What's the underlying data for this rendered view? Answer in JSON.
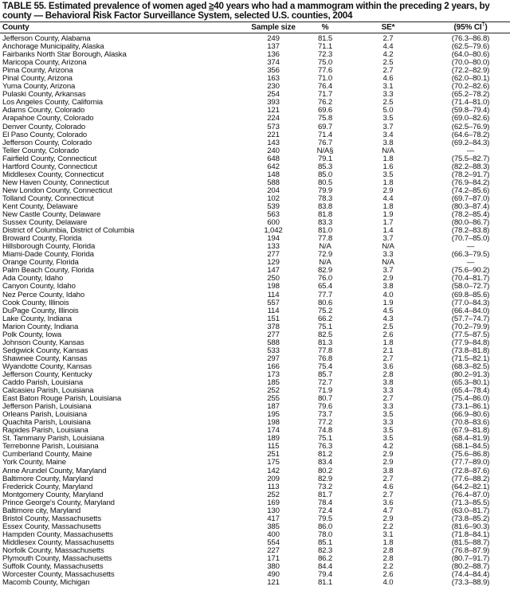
{
  "title": {
    "prefix": "TABLE 55. Estimated prevalence of women aged ",
    "ge": "≥",
    "suffix": "40 years who had a mammogram within the preceding 2 years, by county — Behavioral Risk Factor Surveillance System, selected U.S. counties, 2004"
  },
  "columns": {
    "county": "County",
    "sample_size": "Sample size",
    "percent": "%",
    "se": "SE*",
    "ci": "(95% CI",
    "ci_mark": "†",
    "ci_close": ")"
  },
  "rows": [
    [
      "Jefferson County, Alabama",
      "249",
      "81.5",
      "2.7",
      "(76.3–86.8)"
    ],
    [
      "Anchorage Municipality, Alaska",
      "137",
      "71.1",
      "4.4",
      "(62.5–79.6)"
    ],
    [
      "Fairbanks North Star Borough, Alaska",
      "136",
      "72.3",
      "4.2",
      "(64.0–80.6)"
    ],
    [
      "Maricopa County, Arizona",
      "374",
      "75.0",
      "2.5",
      "(70.0–80.0)"
    ],
    [
      "Pima County, Arizona",
      "356",
      "77.6",
      "2.7",
      "(72.2–82.9)"
    ],
    [
      "Pinal County, Arizona",
      "163",
      "71.0",
      "4.6",
      "(62.0–80.1)"
    ],
    [
      "Yuma County, Arizona",
      "230",
      "76.4",
      "3.1",
      "(70.2–82.6)"
    ],
    [
      "Pulaski County, Arkansas",
      "254",
      "71.7",
      "3.3",
      "(65.2–78.2)"
    ],
    [
      "Los Angeles County, California",
      "393",
      "76.2",
      "2.5",
      "(71.4–81.0)"
    ],
    [
      "Adams County, Colorado",
      "121",
      "69.6",
      "5.0",
      "(59.8–79.4)"
    ],
    [
      "Arapahoe County, Colorado",
      "224",
      "75.8",
      "3.5",
      "(69.0–82.6)"
    ],
    [
      "Denver County, Colorado",
      "573",
      "69.7",
      "3.7",
      "(62.5–76.9)"
    ],
    [
      "El Paso County, Colorado",
      "221",
      "71.4",
      "3.4",
      "(64.6–78.2)"
    ],
    [
      "Jefferson County, Colorado",
      "143",
      "76.7",
      "3.8",
      "(69.2–84.3)"
    ],
    [
      "Teller County, Colorado",
      "240",
      "N/A§",
      "N/A",
      "—"
    ],
    [
      "Fairfield County, Connecticut",
      "648",
      "79.1",
      "1.8",
      "(75.5–82.7)"
    ],
    [
      "Hartford County, Connecticut",
      "642",
      "85.3",
      "1.6",
      "(82.2–88.3)"
    ],
    [
      "Middlesex County, Connecticut",
      "148",
      "85.0",
      "3.5",
      "(78.2–91.7)"
    ],
    [
      "New Haven County, Connecticut",
      "588",
      "80.5",
      "1.8",
      "(76.9–84.2)"
    ],
    [
      "New London County, Connecticut",
      "204",
      "79.9",
      "2.9",
      "(74.2–85.6)"
    ],
    [
      "Tolland County, Connecticut",
      "102",
      "78.3",
      "4.4",
      "(69.7–87.0)"
    ],
    [
      "Kent County, Delaware",
      "539",
      "83.8",
      "1.8",
      "(80.3–87.4)"
    ],
    [
      "New Castle County, Delaware",
      "563",
      "81.8",
      "1.9",
      "(78.2–85.4)"
    ],
    [
      "Sussex County, Delaware",
      "600",
      "83.3",
      "1.7",
      "(80.0–86.7)"
    ],
    [
      "District of Columbia, District of Columbia",
      "1,042",
      "81.0",
      "1.4",
      "(78.2–83.8)"
    ],
    [
      "Broward County, Florida",
      "194",
      "77.8",
      "3.7",
      "(70.7–85.0)"
    ],
    [
      "Hillsborough County, Florida",
      "133",
      "N/A",
      "N/A",
      "—"
    ],
    [
      "Miami-Dade County, Florida",
      "277",
      "72.9",
      "3.3",
      "(66.3–79.5)"
    ],
    [
      "Orange County, Florida",
      "129",
      "N/A",
      "N/A",
      "—"
    ],
    [
      "Palm Beach County, Florida",
      "147",
      "82.9",
      "3.7",
      "(75.6–90.2)"
    ],
    [
      "Ada County, Idaho",
      "250",
      "76.0",
      "2.9",
      "(70.4–81.7)"
    ],
    [
      "Canyon County, Idaho",
      "198",
      "65.4",
      "3.8",
      "(58.0–72.7)"
    ],
    [
      "Nez Perce County, Idaho",
      "114",
      "77.7",
      "4.0",
      "(69.8–85.6)"
    ],
    [
      "Cook County, Illinois",
      "557",
      "80.6",
      "1.9",
      "(77.0–84.3)"
    ],
    [
      "DuPage County, Illinois",
      "114",
      "75.2",
      "4.5",
      "(66.4–84.0)"
    ],
    [
      "Lake County, Indiana",
      "151",
      "66.2",
      "4.3",
      "(57.7–74.7)"
    ],
    [
      "Marion County, Indiana",
      "378",
      "75.1",
      "2.5",
      "(70.2–79.9)"
    ],
    [
      "Polk County, Iowa",
      "277",
      "82.5",
      "2.6",
      "(77.5–87.5)"
    ],
    [
      "Johnson County, Kansas",
      "588",
      "81.3",
      "1.8",
      "(77.9–84.8)"
    ],
    [
      "Sedgwick County, Kansas",
      "533",
      "77.8",
      "2.1",
      "(73.8–81.8)"
    ],
    [
      "Shawnee County, Kansas",
      "297",
      "76.8",
      "2.7",
      "(71.5–82.1)"
    ],
    [
      "Wyandotte County, Kansas",
      "166",
      "75.4",
      "3.6",
      "(68.3–82.5)"
    ],
    [
      "Jefferson County, Kentucky",
      "173",
      "85.7",
      "2.8",
      "(80.2–91.3)"
    ],
    [
      "Caddo Parish, Louisiana",
      "185",
      "72.7",
      "3.8",
      "(65.3–80.1)"
    ],
    [
      "Calcasieu Parish, Louisiana",
      "252",
      "71.9",
      "3.3",
      "(65.4–78.4)"
    ],
    [
      "East Baton Rouge Parish, Louisiana",
      "255",
      "80.7",
      "2.7",
      "(75.4–86.0)"
    ],
    [
      "Jefferson Parish, Louisiana",
      "187",
      "79.6",
      "3.3",
      "(73.1–86.1)"
    ],
    [
      "Orleans Parish, Louisiana",
      "195",
      "73.7",
      "3.5",
      "(66.9–80.6)"
    ],
    [
      "Quachita Parish, Louisiana",
      "198",
      "77.2",
      "3.3",
      "(70.8–83.6)"
    ],
    [
      "Rapides Parish, Louisiana",
      "174",
      "74.8",
      "3.5",
      "(67.9–81.8)"
    ],
    [
      "St. Tammany Parish, Louisiana",
      "189",
      "75.1",
      "3.5",
      "(68.4–81.9)"
    ],
    [
      "Terrebonne Parish, Louisiana",
      "115",
      "76.3",
      "4.2",
      "(68.1–84.5)"
    ],
    [
      "Cumberland County, Maine",
      "251",
      "81.2",
      "2.9",
      "(75.6–86.8)"
    ],
    [
      "York County, Maine",
      "175",
      "83.4",
      "2.9",
      "(77.7–89.0)"
    ],
    [
      "Anne Arundel County, Maryland",
      "142",
      "80.2",
      "3.8",
      "(72.8–87.6)"
    ],
    [
      "Baltimore County, Maryland",
      "209",
      "82.9",
      "2.7",
      "(77.6–88.2)"
    ],
    [
      "Frederick County, Maryland",
      "113",
      "73.2",
      "4.6",
      "(64.2–82.1)"
    ],
    [
      "Montgomery County, Maryland",
      "252",
      "81.7",
      "2.7",
      "(76.4–87.0)"
    ],
    [
      "Prince George's County, Maryland",
      "169",
      "78.4",
      "3.6",
      "(71.3–85.5)"
    ],
    [
      "Baltimore city, Maryland",
      "130",
      "72.4",
      "4.7",
      "(63.0–81.7)"
    ],
    [
      "Bristol County, Massachusetts",
      "417",
      "79.5",
      "2.9",
      "(73.8–85.2)"
    ],
    [
      "Essex County, Massachusetts",
      "385",
      "86.0",
      "2.2",
      "(81.6–90.3)"
    ],
    [
      "Hampden County, Massachusetts",
      "400",
      "78.0",
      "3.1",
      "(71.8–84.1)"
    ],
    [
      "Middlesex County, Massachusetts",
      "554",
      "85.1",
      "1.8",
      "(81.5–88.7)"
    ],
    [
      "Norfolk County, Massachusetts",
      "227",
      "82.3",
      "2.8",
      "(76.8–87.9)"
    ],
    [
      "Plymouth County, Massachusetts",
      "171",
      "86.2",
      "2.8",
      "(80.7–91.7)"
    ],
    [
      "Suffolk County, Massachusetts",
      "380",
      "84.4",
      "2.2",
      "(80.2–88.7)"
    ],
    [
      "Worcester County, Massachusetts",
      "490",
      "79.4",
      "2.6",
      "(74.4–84.4)"
    ],
    [
      "Macomb County, Michigan",
      "121",
      "81.1",
      "4.0",
      "(73.3–88.9)"
    ]
  ]
}
